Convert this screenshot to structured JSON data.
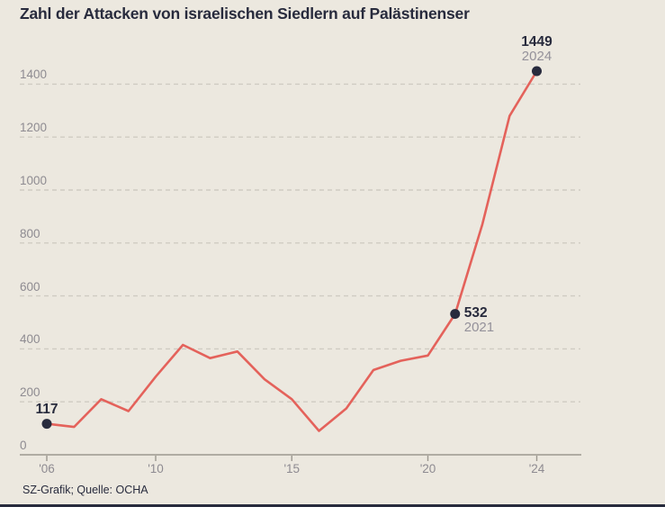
{
  "title": "Zahl der Attacken von israelischen Siedlern auf Palästinenser",
  "footer": "SZ-Grafik; Quelle: OCHA",
  "colors": {
    "background": "#ece8df",
    "line": "#e4625b",
    "dark_text": "#282b3d",
    "axis_label_gray": "#8e8b91",
    "sublabel_gray": "#94919a",
    "gridline": "#cfcbc2",
    "axis": "#9b978f"
  },
  "chart_data": {
    "type": "line",
    "title": "Zahl der Attacken von israelischen Siedlern auf Palästinenser",
    "xlabel": "",
    "ylabel": "",
    "x": [
      2006,
      2007,
      2008,
      2009,
      2010,
      2011,
      2012,
      2013,
      2014,
      2015,
      2016,
      2017,
      2018,
      2019,
      2020,
      2021,
      2022,
      2023,
      2024
    ],
    "values": [
      117,
      105,
      210,
      165,
      295,
      415,
      365,
      390,
      285,
      210,
      90,
      175,
      320,
      355,
      375,
      532,
      870,
      1280,
      1449
    ],
    "ylim": [
      0,
      1500
    ],
    "yticks": [
      0,
      200,
      400,
      600,
      800,
      1000,
      1200,
      1400
    ],
    "xticks": [
      {
        "year": 2006,
        "label": "'06"
      },
      {
        "year": 2010,
        "label": "'10"
      },
      {
        "year": 2015,
        "label": "'15"
      },
      {
        "year": 2020,
        "label": "'20"
      },
      {
        "year": 2024,
        "label": "'24"
      }
    ],
    "grid": "horizontal-dashed",
    "legend": "none",
    "line_color": "#e4625b",
    "dot_color": "#282b3d",
    "annotations": [
      {
        "year": 2006,
        "value": 117,
        "value_label": "117",
        "sublabel": "",
        "placement": "above"
      },
      {
        "year": 2021,
        "value": 532,
        "value_label": "532",
        "sublabel": "2021",
        "placement": "right"
      },
      {
        "year": 2024,
        "value": 1449,
        "value_label": "1449",
        "sublabel": "2024",
        "placement": "above"
      }
    ]
  }
}
